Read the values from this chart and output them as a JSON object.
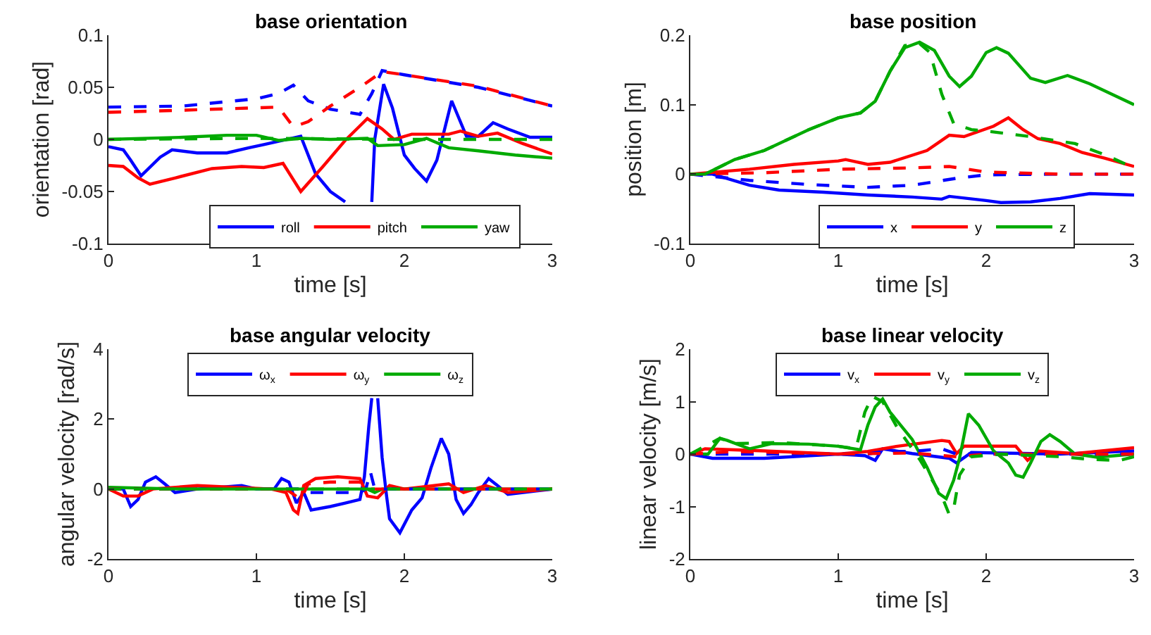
{
  "chart_data": [
    {
      "type": "line",
      "title": "base orientation",
      "xlabel": "time [s]",
      "ylabel": "orientation [rad]",
      "xlim": [
        0,
        3
      ],
      "xticks": [
        0,
        1,
        2,
        3
      ],
      "ylim": [
        -0.1,
        0.1
      ],
      "yticks": [
        -0.1,
        -0.05,
        0,
        0.05,
        0.1
      ],
      "legend": "bottom",
      "series": [
        {
          "name": "roll",
          "color": "#0000ff",
          "line_style": "solid",
          "x": [
            0,
            0.1,
            0.15,
            0.22,
            0.35,
            0.43,
            0.6,
            0.8,
            0.95,
            1.05,
            1.3,
            1.4,
            1.5,
            1.6,
            1.7,
            1.78,
            1.8,
            1.86,
            1.92,
            2.0,
            2.07,
            2.15,
            2.22,
            2.32,
            2.42,
            2.5,
            2.6,
            2.7,
            2.85,
            3.0
          ],
          "values": [
            -0.007,
            -0.01,
            -0.02,
            -0.035,
            -0.017,
            -0.01,
            -0.013,
            -0.013,
            -0.008,
            -0.005,
            0.003,
            -0.033,
            -0.05,
            -0.06,
            null,
            -0.06,
            0,
            0.053,
            0.03,
            -0.015,
            -0.028,
            -0.04,
            -0.02,
            0.037,
            0.003,
            0.003,
            0.016,
            0.01,
            0.002,
            0.002
          ]
        },
        {
          "name": "pitch",
          "color": "#ff0000",
          "line_style": "solid",
          "x": [
            0,
            0.1,
            0.2,
            0.28,
            0.45,
            0.7,
            0.9,
            1.05,
            1.18,
            1.3,
            1.45,
            1.6,
            1.75,
            1.85,
            1.93,
            2.05,
            2.3,
            2.38,
            2.5,
            2.63,
            2.8,
            3.0
          ],
          "values": [
            -0.025,
            -0.026,
            -0.037,
            -0.043,
            -0.037,
            -0.028,
            -0.026,
            -0.027,
            -0.023,
            -0.05,
            -0.026,
            -0.001,
            0.02,
            0.01,
            0,
            0.005,
            0.005,
            0.008,
            0.003,
            0.006,
            -0.004,
            -0.014
          ]
        },
        {
          "name": "yaw",
          "color": "#00aa00",
          "line_style": "solid",
          "x": [
            0,
            0.5,
            0.8,
            1.0,
            1.15,
            1.3,
            1.5,
            1.75,
            1.82,
            2.0,
            2.15,
            2.3,
            2.5,
            2.75,
            3.0
          ],
          "values": [
            0,
            0.002,
            0.004,
            0.004,
            -0.001,
            0.001,
            0,
            0.001,
            -0.006,
            -0.005,
            0.001,
            -0.008,
            -0.011,
            -0.015,
            -0.018
          ]
        },
        {
          "color": "#0000ff",
          "line_style": "dashed",
          "x": [
            0,
            0.5,
            1.0,
            1.15,
            1.25,
            1.35,
            1.5,
            1.7,
            1.78,
            1.85,
            2.0,
            2.5,
            3.0
          ],
          "values": [
            0.031,
            0.032,
            0.039,
            0.044,
            0.052,
            0.037,
            0.029,
            0.024,
            0.044,
            0.066,
            0.062,
            0.05,
            0.032
          ]
        },
        {
          "color": "#ff0000",
          "line_style": "dashed",
          "x": [
            0,
            0.5,
            1.15,
            1.25,
            1.35,
            1.5,
            1.7,
            1.85,
            2.0,
            2.5,
            3.0
          ],
          "values": [
            0.026,
            0.028,
            0.031,
            0.012,
            0.017,
            0.032,
            0.05,
            0.065,
            0.062,
            0.051,
            0.032
          ]
        },
        {
          "color": "#00aa00",
          "line_style": "dashed",
          "x": [
            0,
            1.0,
            2.0,
            3.0
          ],
          "values": [
            0,
            0.001,
            0,
            0
          ]
        }
      ]
    },
    {
      "type": "line",
      "title": "base position",
      "xlabel": "time [s]",
      "ylabel": "position [m]",
      "xlim": [
        0,
        3
      ],
      "xticks": [
        0,
        1,
        2,
        3
      ],
      "ylim": [
        -0.1,
        0.2
      ],
      "yticks": [
        -0.1,
        0,
        0.1,
        0.2
      ],
      "legend": "bottom",
      "series": [
        {
          "name": "x",
          "color": "#0000ff",
          "line_style": "solid",
          "x": [
            0,
            0.15,
            0.4,
            0.6,
            0.9,
            1.2,
            1.5,
            1.7,
            1.75,
            2.0,
            2.1,
            2.3,
            2.5,
            2.7,
            3.0
          ],
          "values": [
            0,
            0,
            -0.016,
            -0.023,
            -0.026,
            -0.03,
            -0.033,
            -0.036,
            -0.032,
            -0.038,
            -0.041,
            -0.04,
            -0.035,
            -0.028,
            -0.03
          ]
        },
        {
          "name": "y",
          "color": "#ff0000",
          "line_style": "solid",
          "x": [
            0,
            0.4,
            0.7,
            1.0,
            1.05,
            1.2,
            1.35,
            1.6,
            1.75,
            1.85,
            2.05,
            2.15,
            2.25,
            2.35,
            2.5,
            2.65,
            2.8,
            3.0
          ],
          "values": [
            0,
            0.007,
            0.014,
            0.019,
            0.021,
            0.014,
            0.017,
            0.034,
            0.056,
            0.054,
            0.069,
            0.081,
            0.064,
            0.051,
            0.044,
            0.031,
            0.023,
            0.011
          ]
        },
        {
          "name": "z",
          "color": "#00aa00",
          "line_style": "solid",
          "x": [
            0,
            0.1,
            0.3,
            0.5,
            0.8,
            1.0,
            1.15,
            1.25,
            1.35,
            1.45,
            1.55,
            1.65,
            1.75,
            1.82,
            1.9,
            2.0,
            2.07,
            2.15,
            2.3,
            2.4,
            2.55,
            2.7,
            3.0
          ],
          "values": [
            0,
            0,
            0.021,
            0.034,
            0.064,
            0.081,
            0.088,
            0.105,
            0.148,
            0.182,
            0.19,
            0.178,
            0.141,
            0.126,
            0.141,
            0.175,
            0.182,
            0.174,
            0.138,
            0.132,
            0.142,
            0.13,
            0.1
          ]
        },
        {
          "color": "#0000ff",
          "line_style": "dashed",
          "x": [
            0,
            0.4,
            0.8,
            1.2,
            1.5,
            1.8,
            2.0,
            2.5,
            3.0
          ],
          "values": [
            0,
            -0.009,
            -0.015,
            -0.019,
            -0.016,
            -0.006,
            -0.001,
            0,
            0
          ]
        },
        {
          "color": "#ff0000",
          "line_style": "dashed",
          "x": [
            0,
            0.5,
            1.0,
            1.5,
            1.75,
            2.0,
            2.5,
            3.0
          ],
          "values": [
            0,
            0.002,
            0.007,
            0.009,
            0.011,
            0.003,
            0,
            0
          ]
        },
        {
          "color": "#00aa00",
          "line_style": "dashed",
          "x": [
            0,
            0.1,
            0.3,
            0.5,
            0.8,
            1.0,
            1.15,
            1.25,
            1.35,
            1.45,
            1.55,
            1.62,
            1.7,
            1.78,
            1.9,
            2.0,
            2.3,
            2.6,
            2.8,
            3.0
          ],
          "values": [
            0,
            0,
            0.021,
            0.034,
            0.064,
            0.081,
            0.088,
            0.105,
            0.148,
            0.185,
            0.188,
            0.175,
            0.115,
            0.073,
            0.064,
            0.062,
            0.054,
            0.044,
            0.028,
            0.009
          ]
        }
      ]
    },
    {
      "type": "line",
      "title": "base angular velocity",
      "xlabel": "time [s]",
      "ylabel": "angular velocity [rad/s]",
      "xlim": [
        0,
        3
      ],
      "xticks": [
        0,
        1,
        2,
        3
      ],
      "ylim": [
        -2,
        4
      ],
      "yticks": [
        -2,
        0,
        2,
        4
      ],
      "legend": "top",
      "series": [
        {
          "name": "ω$_{x}$",
          "color": "#0000ff",
          "line_style": "solid",
          "x": [
            0,
            0.1,
            0.15,
            0.2,
            0.25,
            0.32,
            0.38,
            0.45,
            0.6,
            0.9,
            1.0,
            1.12,
            1.17,
            1.22,
            1.27,
            1.32,
            1.37,
            1.5,
            1.6,
            1.7,
            1.73,
            1.76,
            1.78,
            1.8,
            1.82,
            1.85,
            1.88,
            1.9,
            1.97,
            2.05,
            2.12,
            2.18,
            2.25,
            2.3,
            2.35,
            2.4,
            2.45,
            2.5,
            2.57,
            2.63,
            2.7,
            3.0
          ],
          "values": [
            0,
            0,
            -0.5,
            -0.3,
            0.2,
            0.35,
            0.15,
            -0.1,
            0,
            0.1,
            0,
            0,
            0.3,
            0.2,
            -0.4,
            -0.1,
            -0.6,
            -0.5,
            -0.4,
            -0.3,
            0.35,
            1.8,
            2.6,
            null,
            2.6,
            0.9,
            -0.2,
            -0.85,
            -1.25,
            -0.6,
            -0.25,
            0.6,
            1.45,
            1.0,
            -0.3,
            -0.7,
            -0.45,
            -0.1,
            0.3,
            0.1,
            -0.15,
            0
          ]
        },
        {
          "name": "ω$_{y}$",
          "color": "#ff0000",
          "line_style": "solid",
          "x": [
            0,
            0.1,
            0.2,
            0.3,
            0.6,
            1.1,
            1.2,
            1.25,
            1.28,
            1.32,
            1.4,
            1.55,
            1.7,
            1.75,
            1.82,
            1.9,
            2.0,
            2.3,
            2.4,
            2.55,
            2.7,
            3.0
          ],
          "values": [
            0,
            -0.2,
            -0.2,
            0,
            0.1,
            0,
            -0.1,
            -0.6,
            -0.7,
            0.1,
            0.3,
            0.35,
            0.3,
            -0.2,
            -0.25,
            0.1,
            0,
            0.15,
            -0.1,
            0.1,
            -0.1,
            0
          ]
        },
        {
          "name": "ω$_{z}$",
          "color": "#00aa00",
          "line_style": "solid",
          "x": [
            0,
            0.5,
            1.0,
            1.5,
            1.75,
            1.8,
            1.85,
            2.2,
            2.6,
            3.0
          ],
          "values": [
            0.05,
            0,
            0,
            0,
            0,
            -0.1,
            0,
            0,
            0,
            0
          ]
        },
        {
          "color": "#0000ff",
          "line_style": "dashed",
          "x": [
            0,
            1.3,
            1.35,
            1.7,
            1.74,
            1.77,
            1.8,
            3.0
          ],
          "values": [
            0,
            0,
            -0.1,
            -0.1,
            0,
            0.5,
            0,
            0
          ]
        },
        {
          "color": "#ff0000",
          "line_style": "dashed",
          "x": [
            0,
            1.2,
            1.3,
            1.35,
            1.5,
            1.7,
            1.75,
            3.0
          ],
          "values": [
            0,
            0,
            -0.3,
            0.15,
            0.2,
            0.2,
            0,
            0
          ]
        },
        {
          "color": "#00aa00",
          "line_style": "dashed",
          "x": [
            0,
            3.0
          ],
          "values": [
            0,
            0
          ]
        }
      ]
    },
    {
      "type": "line",
      "title": "base linear velocity",
      "xlabel": "time [s]",
      "ylabel": "linear velocity [m/s]",
      "xlim": [
        0,
        3
      ],
      "xticks": [
        0,
        1,
        2,
        3
      ],
      "ylim": [
        -2,
        2
      ],
      "yticks": [
        -2,
        -1,
        0,
        1,
        2
      ],
      "legend": "top",
      "series": [
        {
          "name": "v$_{x}$",
          "color": "#0000ff",
          "line_style": "solid",
          "x": [
            0,
            0.15,
            0.5,
            1.0,
            1.18,
            1.25,
            1.3,
            1.5,
            1.75,
            1.8,
            1.9,
            2.5,
            3.0
          ],
          "values": [
            0,
            -0.08,
            -0.08,
            0,
            -0.03,
            -0.12,
            0.1,
            0.01,
            -0.08,
            -0.17,
            0.03,
            0,
            0.06
          ]
        },
        {
          "name": "v$_{y}$",
          "color": "#ff0000",
          "line_style": "solid",
          "x": [
            0,
            0.1,
            0.5,
            1.0,
            1.2,
            1.4,
            1.7,
            1.75,
            1.8,
            1.85,
            2.0,
            2.2,
            2.28,
            2.35,
            2.6,
            3.0
          ],
          "values": [
            0,
            0.1,
            0.06,
            0,
            0.05,
            0.15,
            0.26,
            0.24,
            0.01,
            0.15,
            0.15,
            0.15,
            -0.12,
            0.06,
            0.01,
            0.12
          ]
        },
        {
          "name": "v$_{z}$",
          "color": "#00aa00",
          "line_style": "solid",
          "x": [
            0,
            0.12,
            0.2,
            0.25,
            0.4,
            0.55,
            0.8,
            1.0,
            1.15,
            1.2,
            1.25,
            1.3,
            1.35,
            1.5,
            1.6,
            1.68,
            1.73,
            1.78,
            1.82,
            1.88,
            1.95,
            2.05,
            2.15,
            2.2,
            2.25,
            2.3,
            2.37,
            2.43,
            2.5,
            2.6,
            2.75,
            3.0
          ],
          "values": [
            0,
            0,
            0.3,
            0.26,
            0.1,
            0.2,
            0.19,
            0.15,
            0.08,
            0.55,
            0.9,
            1.05,
            0.8,
            0.28,
            -0.25,
            -0.75,
            -0.85,
            -0.5,
            -0.08,
            0.77,
            0.55,
            0.06,
            -0.17,
            -0.4,
            -0.44,
            -0.17,
            0.24,
            0.37,
            0.24,
            0,
            -0.06,
            0
          ]
        },
        {
          "color": "#0000ff",
          "line_style": "dashed",
          "x": [
            0,
            1.2,
            1.3,
            1.5,
            1.7,
            1.8,
            3.0
          ],
          "values": [
            0,
            0,
            0.05,
            0.05,
            0.1,
            0,
            0
          ]
        },
        {
          "color": "#ff0000",
          "line_style": "dashed",
          "x": [
            0,
            0.3,
            1.0,
            1.5,
            1.8,
            2.0,
            3.0
          ],
          "values": [
            0,
            0.05,
            0,
            0.02,
            -0.05,
            0,
            0
          ]
        },
        {
          "color": "#00aa00",
          "line_style": "dashed",
          "x": [
            0,
            0.2,
            0.3,
            0.6,
            1.0,
            1.12,
            1.18,
            1.23,
            1.3,
            1.4,
            1.55,
            1.7,
            1.75,
            1.78,
            1.82,
            1.9,
            2.1,
            2.5,
            2.7,
            2.9,
            3.0
          ],
          "values": [
            0,
            0.3,
            0.2,
            0.22,
            0.15,
            0.1,
            0.8,
            1.1,
            1.0,
            0.5,
            -0.1,
            -0.8,
            -1.15,
            -1.05,
            -0.4,
            -0.05,
            0,
            -0.05,
            -0.1,
            -0.12,
            -0.05
          ]
        }
      ]
    }
  ]
}
